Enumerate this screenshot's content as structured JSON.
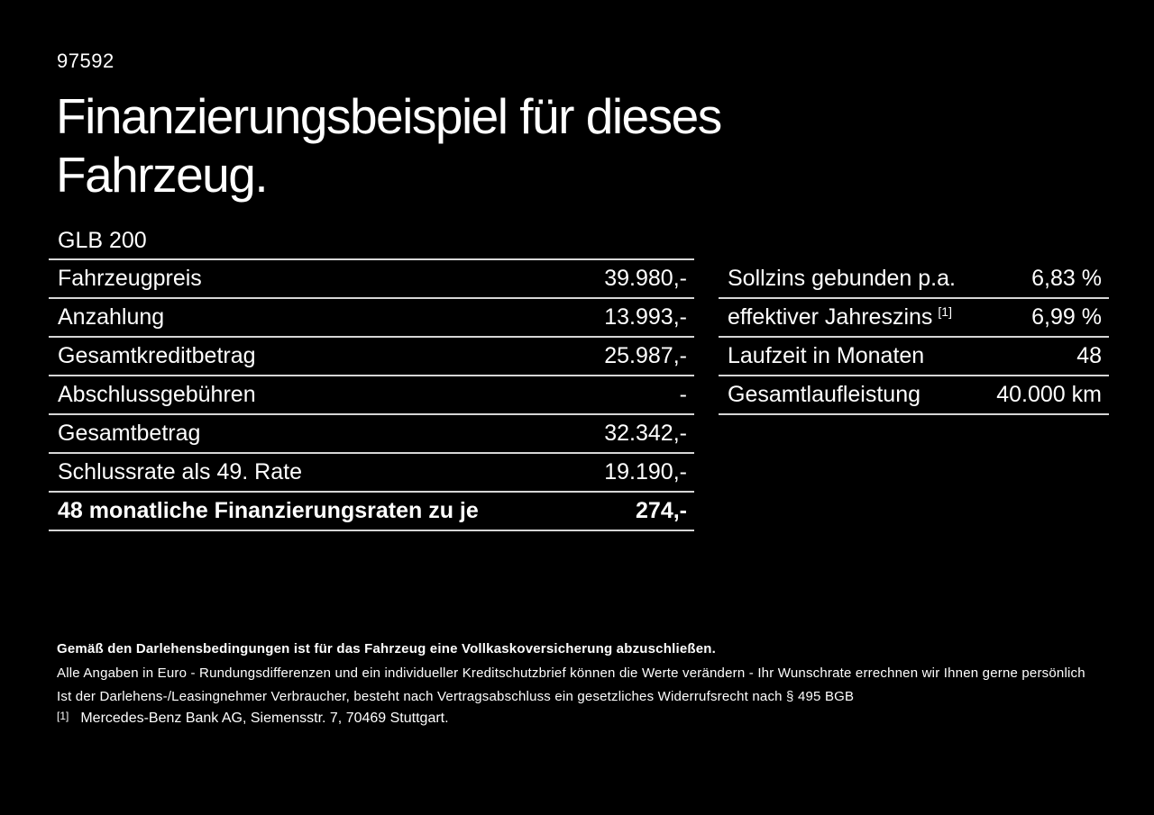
{
  "page": {
    "vehicle_id": "97592",
    "title_line1": "Finanzierungsbeispiel für dieses",
    "title_line2": "Fahrzeug.",
    "model": "GLB 200"
  },
  "finance_table": {
    "rows": [
      {
        "label": "Fahrzeugpreis",
        "value": "39.980,-"
      },
      {
        "label": "Anzahlung",
        "value": "13.993,-"
      },
      {
        "label": "Gesamtkreditbetrag",
        "value": "25.987,-"
      },
      {
        "label": "Abschlussgebühren",
        "value": "-"
      },
      {
        "label": "Gesamtbetrag",
        "value": "32.342,-"
      },
      {
        "label": "Schlussrate als 49. Rate",
        "value": "19.190,-"
      },
      {
        "label": "48 monatliche Finanzierungsraten zu je",
        "value": "274,-"
      }
    ]
  },
  "conditions_table": {
    "rows": [
      {
        "label": "Sollzins gebunden p.a.",
        "sup": "",
        "value": "6,83 %"
      },
      {
        "label": "effektiver Jahreszins",
        "sup": "[1]",
        "value": "6,99 %"
      },
      {
        "label": "Laufzeit in Monaten",
        "sup": "",
        "value": "48"
      },
      {
        "label": "Gesamtlaufleistung",
        "sup": "",
        "value": "40.000 km"
      }
    ]
  },
  "footer": {
    "bold_note": "Gemäß den Darlehensbedingungen ist für das Fahrzeug eine Vollkaskoversicherung abzuschließen.",
    "note1": "Alle Angaben in Euro - Rundungsdifferenzen und ein individueller Kreditschutzbrief können die Werte verändern - Ihr Wunschrate errechnen wir Ihnen gerne persönlich",
    "note2": "Ist der Darlehens-/Leasingnehmer Verbraucher, besteht nach Vertragsabschluss ein gesetzliches Widerrufsrecht nach § 495 BGB",
    "footnote_marker": "[1]",
    "footnote_text": "Mercedes-Benz Bank AG, Siemensstr. 7, 70469 Stuttgart."
  },
  "colors": {
    "background": "#000000",
    "text": "#ffffff",
    "divider": "#d6d6d6"
  }
}
